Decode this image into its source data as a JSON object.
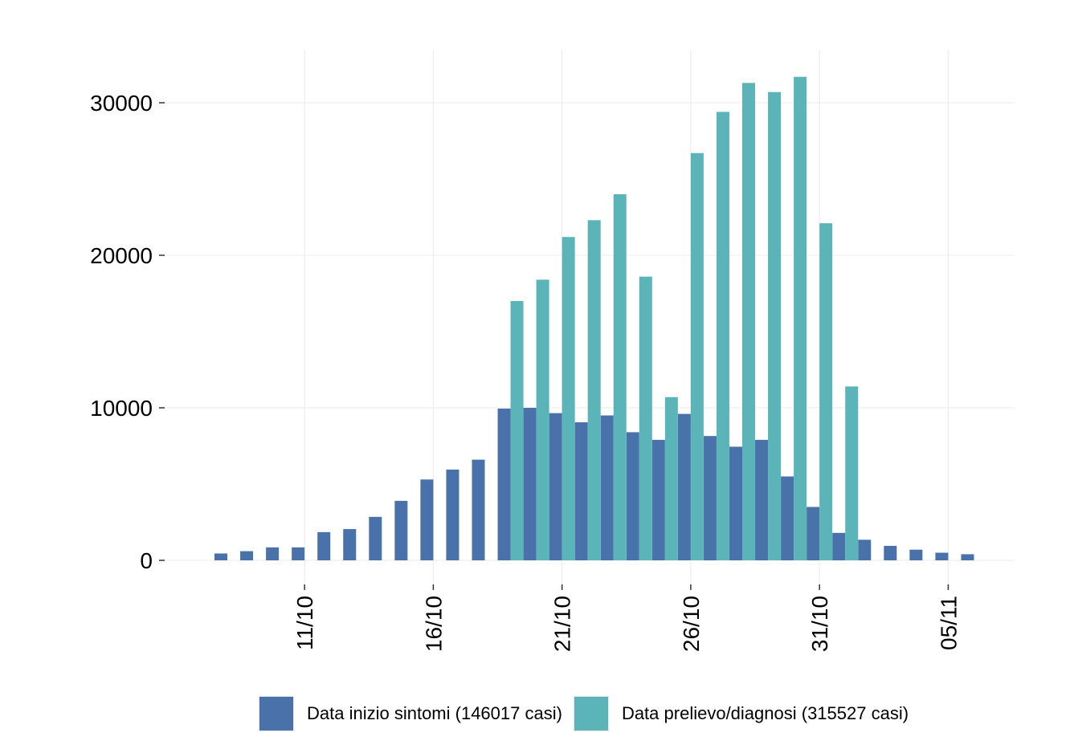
{
  "chart_data": {
    "type": "bar",
    "categories": [
      "08/10",
      "09/10",
      "10/10",
      "11/10",
      "12/10",
      "13/10",
      "14/10",
      "15/10",
      "16/10",
      "17/10",
      "18/10",
      "19/10",
      "20/10",
      "21/10",
      "22/10",
      "23/10",
      "24/10",
      "25/10",
      "26/10",
      "27/10",
      "28/10",
      "29/10",
      "30/10",
      "31/10",
      "01/11",
      "02/11",
      "03/11",
      "04/11",
      "05/11",
      "06/11"
    ],
    "x_tick_labels": [
      "11/10",
      "16/10",
      "21/10",
      "26/10",
      "31/10",
      "05/11"
    ],
    "y_ticks": [
      0,
      10000,
      20000,
      30000
    ],
    "ylim": [
      -1500,
      33500
    ],
    "grid": true,
    "legend_position": "bottom",
    "series": [
      {
        "name": "Data inizio sintomi (146017 casi)",
        "color": "#4a72aa",
        "values": [
          450,
          600,
          850,
          850,
          1850,
          2050,
          2850,
          3900,
          5300,
          5950,
          6600,
          9950,
          10000,
          9650,
          9050,
          9500,
          8400,
          7900,
          9600,
          8150,
          7450,
          7900,
          5500,
          3500,
          1800,
          1350,
          950,
          700,
          500,
          400
        ]
      },
      {
        "name": "Data prelievo/diagnosi (315527 casi)",
        "color": "#5bb5b8",
        "values": [
          0,
          0,
          0,
          0,
          0,
          0,
          0,
          0,
          0,
          0,
          0,
          17000,
          18400,
          21200,
          22300,
          24000,
          18600,
          10700,
          26700,
          29400,
          31300,
          30700,
          31700,
          22100,
          11400,
          0,
          0,
          0,
          0,
          0
        ]
      }
    ]
  }
}
